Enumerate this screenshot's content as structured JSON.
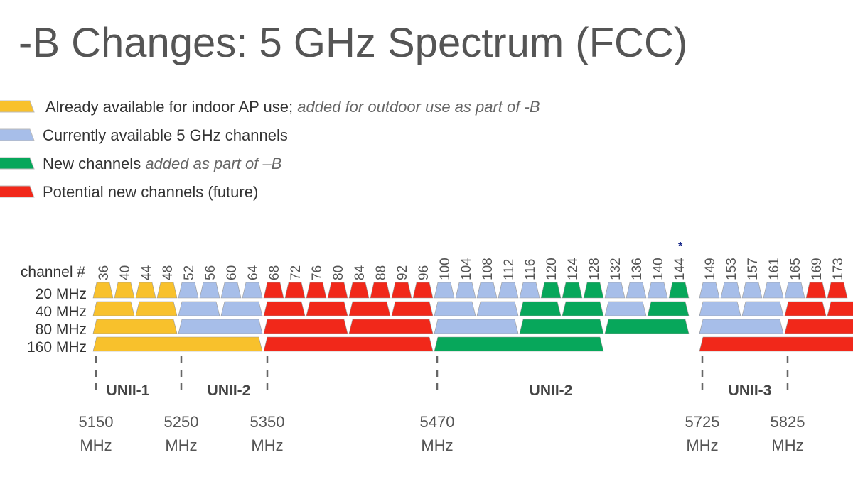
{
  "title": "-B Changes: 5 GHz Spectrum (FCC)",
  "legend": [
    {
      "text": "Already available for indoor AP use;",
      "italic": "added for outdoor use as part of -B",
      "color": "#f8c12c"
    },
    {
      "text": "Currently available 5 GHz channels",
      "color": "#a7bee9"
    },
    {
      "text": "New channels",
      "italic": "added as part of –B",
      "color": "#07a75b"
    },
    {
      "text": "Potential new channels (future)",
      "color": "#f1281a"
    }
  ],
  "channel_label": "channel #",
  "channels": [
    "36",
    "40",
    "44",
    "48",
    "52",
    "56",
    "60",
    "64",
    "68",
    "72",
    "76",
    "80",
    "84",
    "88",
    "92",
    "96",
    "100",
    "104",
    "108",
    "112",
    "116",
    "120",
    "124",
    "128",
    "132",
    "136",
    "140",
    "144",
    "149",
    "153",
    "157",
    "161",
    "165",
    "169",
    "173"
  ],
  "footnote_mark": "*",
  "widths": [
    "20 MHz",
    "40 MHz",
    "80 MHz",
    "160 MHz"
  ],
  "bands": [
    "UNII-1",
    "UNII-2",
    "UNII-2",
    "UNII-3"
  ],
  "frequencies": [
    {
      "value": "5150",
      "unit": "MHz"
    },
    {
      "value": "5250",
      "unit": "MHz"
    },
    {
      "value": "5350",
      "unit": "MHz"
    },
    {
      "value": "5470",
      "unit": "MHz"
    },
    {
      "value": "5725",
      "unit": "MHz"
    },
    {
      "value": "5825",
      "unit": "MHz"
    }
  ]
}
